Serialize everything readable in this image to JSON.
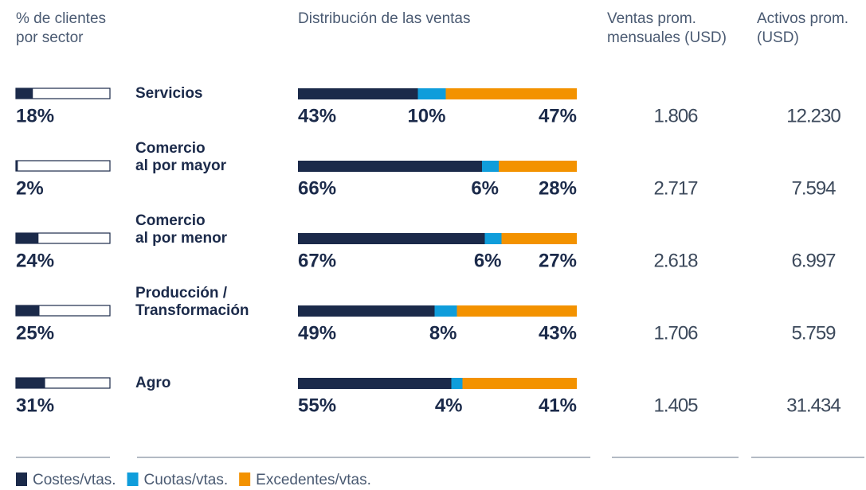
{
  "chart_data": {
    "type": "sector-table",
    "columns": [
      [
        "% de clientes",
        "por sector"
      ],
      [
        "Distribución de las ventas"
      ],
      [
        "Ventas prom.",
        "mensuales (USD)"
      ],
      [
        "Activos prom.",
        "(USD)"
      ]
    ],
    "categories": [
      [
        "Servicios"
      ],
      [
        "Comercio",
        "al por mayor"
      ],
      [
        "Comercio",
        "al por menor"
      ],
      [
        "Producción /",
        "Transformación"
      ],
      [
        "Agro"
      ]
    ],
    "share": {
      "color": "#1b2a4a",
      "xlim": [
        0,
        100
      ],
      "values": [
        18,
        2,
        24,
        25,
        31
      ],
      "value_labels": [
        "18%",
        "2%",
        "24%",
        "25%",
        "31%"
      ]
    },
    "xlim": [
      0,
      100
    ],
    "series": [
      {
        "name": "Costes/vtas.",
        "color": "#1b2a4a",
        "values": [
          43,
          66,
          67,
          49,
          55
        ],
        "value_labels": [
          "43%",
          "66%",
          "67%",
          "49%",
          "55%"
        ]
      },
      {
        "name": "Cuotas/vtas.",
        "color": "#0f9ddb",
        "values": [
          10,
          6,
          6,
          8,
          4
        ],
        "value_labels": [
          "10%",
          "6%",
          "6%",
          "8%",
          "4%"
        ]
      },
      {
        "name": "Excedentes/vtas.",
        "color": "#f39200",
        "values": [
          47,
          28,
          27,
          43,
          41
        ],
        "value_labels": [
          "47%",
          "28%",
          "27%",
          "43%",
          "41%"
        ]
      }
    ],
    "sales": {
      "values": [
        1806,
        2717,
        2618,
        1706,
        1405
      ],
      "value_labels": [
        "1.806",
        "2.717",
        "2.618",
        "1.706",
        "1.405"
      ]
    },
    "assets": {
      "values": [
        12230,
        7594,
        6997,
        5759,
        31434
      ],
      "value_labels": [
        "12.230",
        "7.594",
        "6.997",
        "5.759",
        "31.434"
      ]
    }
  }
}
